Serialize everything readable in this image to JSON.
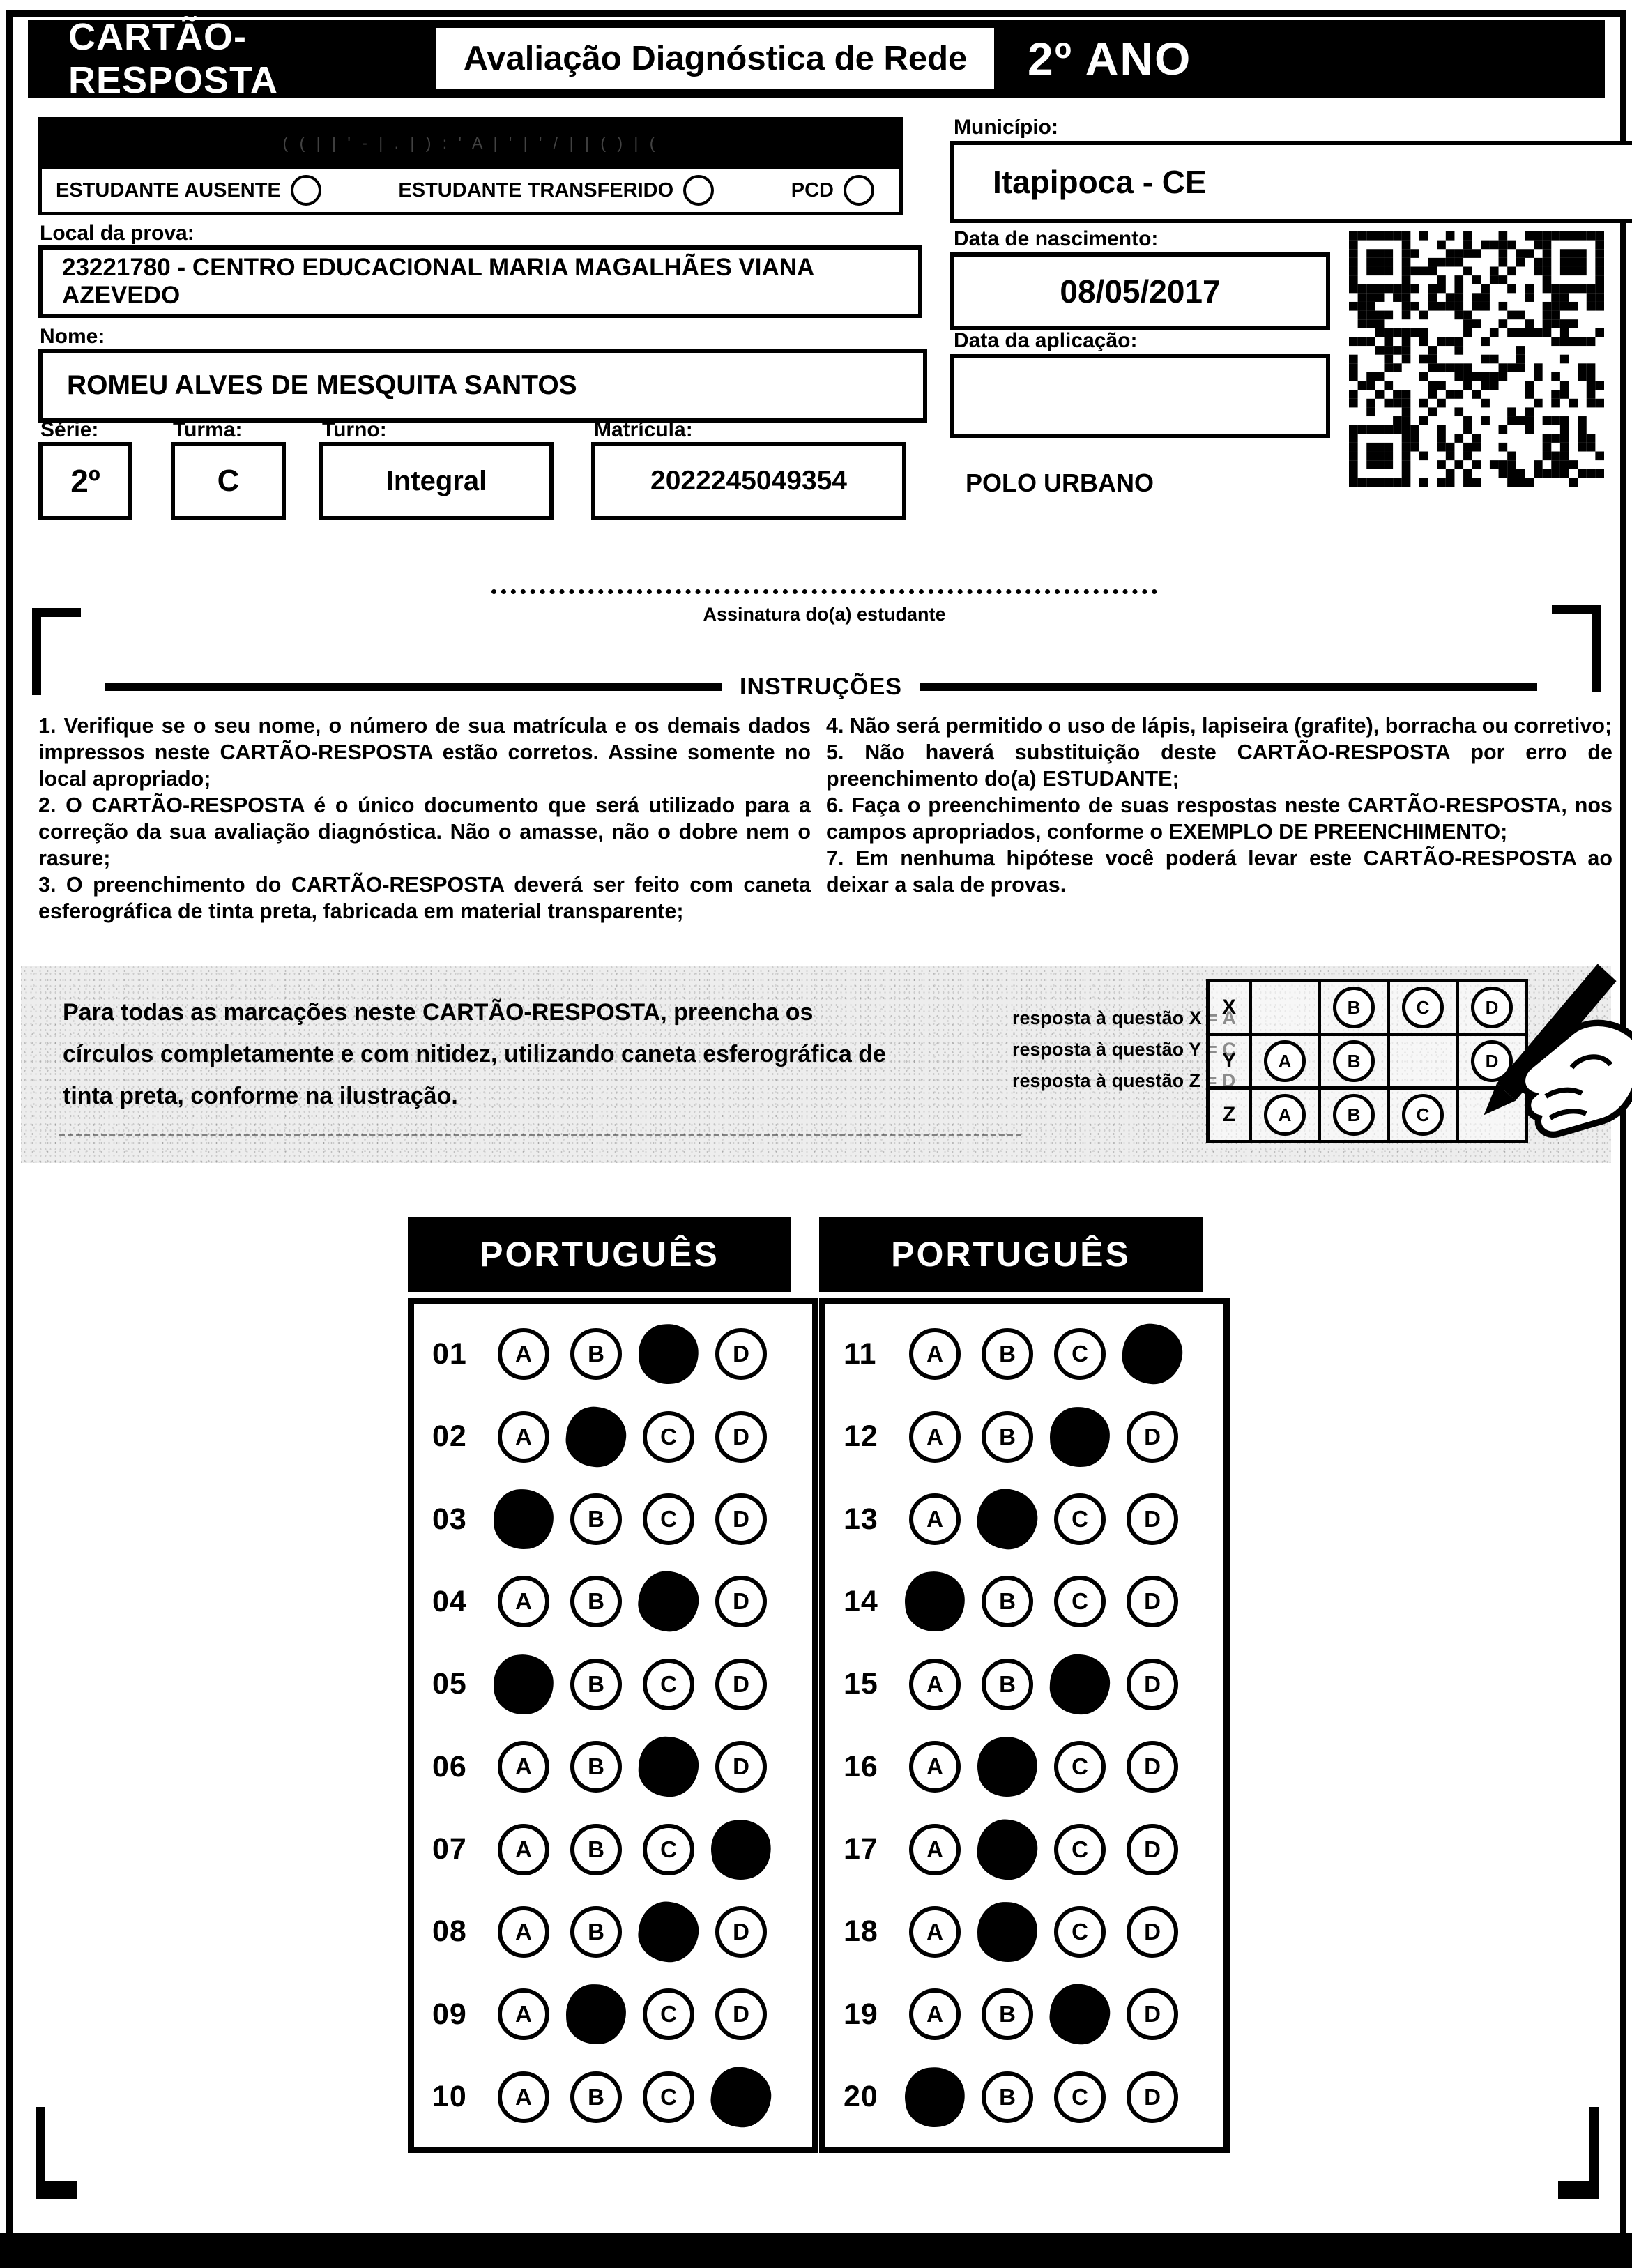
{
  "header": {
    "title": "CARTÃO-RESPOSTA",
    "exam": "Avaliação Diagnóstica de Rede",
    "grade": "2º ANO"
  },
  "applicator": {
    "faint_text": "( ( | | ' - | . | ) : ' A | ' | ' / | | ( ) | (",
    "options": [
      {
        "label": "ESTUDANTE AUSENTE"
      },
      {
        "label": "ESTUDANTE TRANSFERIDO"
      },
      {
        "label": "PCD"
      }
    ]
  },
  "student": {
    "local_label": "Local da prova:",
    "local_value": "23221780 - CENTRO EDUCACIONAL MARIA MAGALHÃES VIANA AZEVEDO",
    "nome_label": "Nome:",
    "nome_value": "ROMEU ALVES DE MESQUITA SANTOS",
    "serie_label": "Série:",
    "serie_value": "2º",
    "turma_label": "Turma:",
    "turma_value": "C",
    "turno_label": "Turno:",
    "turno_value": "Integral",
    "matricula_label": "Matrícula:",
    "matricula_value": "2022245049354",
    "municipio_label": "Município:",
    "municipio_value": "Itapipoca - CE",
    "nascimento_label": "Data de nascimento:",
    "nascimento_value": "08/05/2017",
    "aplicacao_label": "Data da aplicação:",
    "aplicacao_value": "",
    "polo": "POLO URBANO"
  },
  "signature": {
    "caption": "Assinatura do(a) estudante"
  },
  "instructions": {
    "title": "INSTRUÇÕES",
    "left": [
      "1. Verifique se o seu nome, o número de sua matrícula e os demais dados impressos neste CARTÃO-RESPOSTA estão corretos. Assine somente no local apropriado;",
      "2. O CARTÃO-RESPOSTA é o único documento que será utilizado para a correção da sua avaliação diagnóstica. Não o amasse, não o dobre nem o rasure;",
      "3. O preenchimento do CARTÃO-RESPOSTA deverá ser feito com caneta esferográfica de tinta preta, fabricada em material transparente;"
    ],
    "right": [
      "4. Não será permitido o uso de lápis, lapiseira (grafite), borracha ou corretivo;",
      "5. Não haverá substituição deste CARTÃO-RESPOSTA por erro de preenchimento do(a) ESTUDANTE;",
      "6. Faça o preenchimento de suas respostas neste CARTÃO-RESPOSTA, nos campos apropriados, conforme o EXEMPLO DE PREENCHIMENTO;",
      "7. Em nenhuma hipótese você poderá levar este CARTÃO-RESPOSTA ao deixar a sala de provas."
    ]
  },
  "example": {
    "text": "Para todas as marcações neste CARTÃO-RESPOSTA, preencha os círculos completamente e com nitidez, utilizando caneta esferográfica de tinta preta, conforme na ilustração.",
    "legend": [
      "resposta à questão X = A",
      "resposta à questão Y = C",
      "resposta à questão Z = D"
    ],
    "options": [
      "A",
      "B",
      "C",
      "D"
    ],
    "rows": [
      {
        "label": "X",
        "marked": "A"
      },
      {
        "label": "Y",
        "marked": "C"
      },
      {
        "label": "Z",
        "marked": "D"
      }
    ]
  },
  "answer_sheet": {
    "options": [
      "A",
      "B",
      "C",
      "D"
    ],
    "columns": [
      {
        "subject": "PORTUGUÊS",
        "questions": [
          {
            "n": "01",
            "marked": "C"
          },
          {
            "n": "02",
            "marked": "B"
          },
          {
            "n": "03",
            "marked": "A"
          },
          {
            "n": "04",
            "marked": "C"
          },
          {
            "n": "05",
            "marked": "A"
          },
          {
            "n": "06",
            "marked": "C"
          },
          {
            "n": "07",
            "marked": "D"
          },
          {
            "n": "08",
            "marked": "C"
          },
          {
            "n": "09",
            "marked": "B"
          },
          {
            "n": "10",
            "marked": "D"
          }
        ]
      },
      {
        "subject": "PORTUGUÊS",
        "questions": [
          {
            "n": "11",
            "marked": "D"
          },
          {
            "n": "12",
            "marked": "C"
          },
          {
            "n": "13",
            "marked": "B"
          },
          {
            "n": "14",
            "marked": "A"
          },
          {
            "n": "15",
            "marked": "C"
          },
          {
            "n": "16",
            "marked": "B"
          },
          {
            "n": "17",
            "marked": "B"
          },
          {
            "n": "18",
            "marked": "B"
          },
          {
            "n": "19",
            "marked": "C"
          },
          {
            "n": "20",
            "marked": "A"
          }
        ]
      }
    ]
  }
}
